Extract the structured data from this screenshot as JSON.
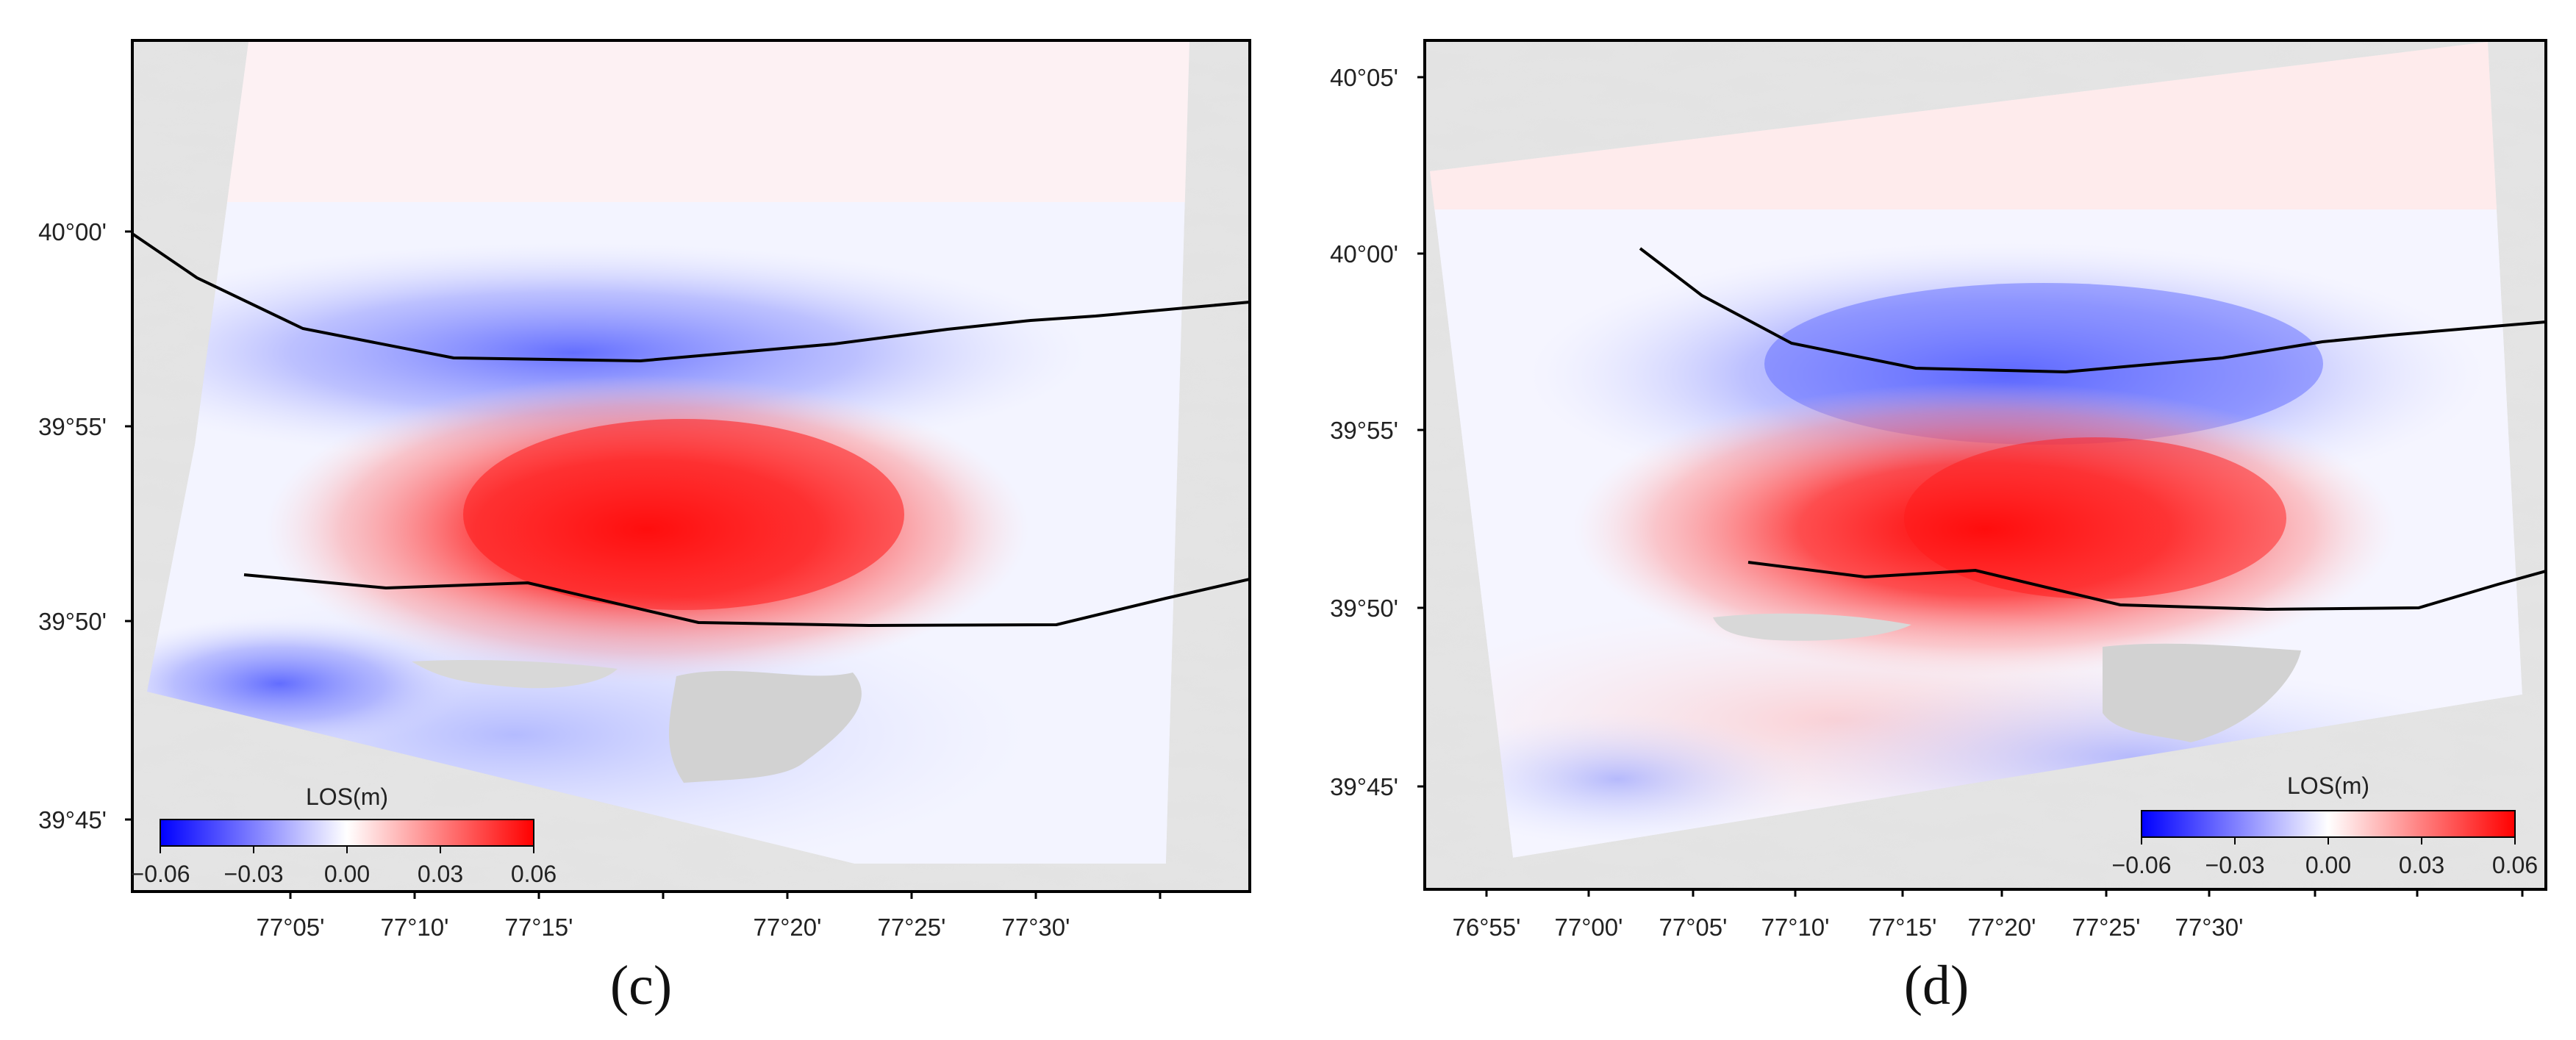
{
  "figure": "two InSAR line-of-sight deformation panels",
  "panels": [
    {
      "id": "c",
      "label": "(c)",
      "x_ticks": [
        "77°05'",
        "77°10'",
        "77°15'",
        "77°20'",
        "77°25'",
        "77°30'"
      ],
      "y_ticks": [
        "40°00'",
        "39°55'",
        "39°50'",
        "39°45'"
      ],
      "colorbar": {
        "title": "LOS(m)",
        "ticks": [
          "−0.06",
          "−0.03",
          "0.00",
          "0.03",
          "0.06"
        ],
        "min": -0.06,
        "max": 0.06,
        "colors": [
          "#0000ff",
          "#ffffff",
          "#ff0000"
        ]
      },
      "faults": 2
    },
    {
      "id": "d",
      "label": "(d)",
      "x_ticks": [
        "76°55'",
        "77°00'",
        "77°05'",
        "77°10'",
        "77°15'",
        "77°20'",
        "77°25'",
        "77°30'"
      ],
      "y_ticks": [
        "40°05'",
        "40°00'",
        "39°55'",
        "39°50'",
        "39°45'"
      ],
      "colorbar": {
        "title": "LOS(m)",
        "ticks": [
          "−0.06",
          "−0.03",
          "0.00",
          "0.03",
          "0.06"
        ],
        "min": -0.06,
        "max": 0.06,
        "colors": [
          "#0000ff",
          "#ffffff",
          "#ff0000"
        ]
      },
      "faults": 2
    }
  ]
}
